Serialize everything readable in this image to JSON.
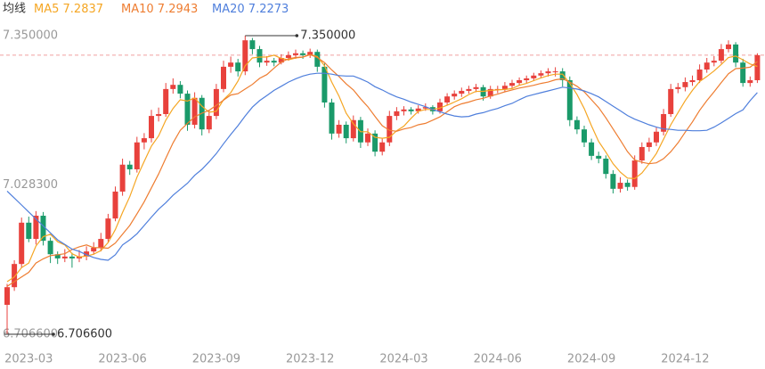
{
  "chart_data": {
    "type": "candlestick",
    "legend_title": "均线",
    "categories": [
      null,
      null,
      null,
      "2023-03",
      null,
      null,
      null,
      null,
      null,
      null,
      null,
      null,
      null,
      null,
      null,
      null,
      "2023-06",
      null,
      null,
      null,
      null,
      null,
      null,
      null,
      null,
      null,
      null,
      null,
      null,
      "2023-09",
      null,
      null,
      null,
      null,
      null,
      null,
      null,
      null,
      null,
      null,
      null,
      null,
      "2023-12",
      null,
      null,
      null,
      null,
      null,
      null,
      null,
      null,
      null,
      null,
      null,
      null,
      "2024-03",
      null,
      null,
      null,
      null,
      null,
      null,
      null,
      null,
      null,
      null,
      null,
      null,
      "2024-06",
      null,
      null,
      null,
      null,
      null,
      null,
      null,
      null,
      null,
      null,
      null,
      null,
      "2024-09",
      null,
      null,
      null,
      null,
      null,
      null,
      null,
      null,
      null,
      null,
      null,
      null,
      "2024-12",
      null,
      null,
      null,
      null,
      null,
      null,
      null,
      null,
      null,
      null
    ],
    "open": [
      6.77,
      6.808,
      6.858,
      6.947,
      6.912,
      6.962,
      6.908,
      6.879,
      6.87,
      6.874,
      6.87,
      6.874,
      6.885,
      6.893,
      6.912,
      6.956,
      7.014,
      7.072,
      7.062,
      7.12,
      7.129,
      7.177,
      7.181,
      7.235,
      7.244,
      7.225,
      7.158,
      7.216,
      7.148,
      7.177,
      7.235,
      7.283,
      7.292,
      7.273,
      7.34,
      7.321,
      7.292,
      7.296,
      7.292,
      7.302,
      7.308,
      7.312,
      7.308,
      7.315,
      7.283,
      7.206,
      7.139,
      7.158,
      7.129,
      7.168,
      7.12,
      7.139,
      7.1,
      7.12,
      7.177,
      7.187,
      7.191,
      7.187,
      7.193,
      7.196,
      7.187,
      7.206,
      7.219,
      7.225,
      7.231,
      7.235,
      7.239,
      7.219,
      7.235,
      7.235,
      7.242,
      7.248,
      7.254,
      7.258,
      7.264,
      7.269,
      7.273,
      7.273,
      7.254,
      7.168,
      7.148,
      7.12,
      7.091,
      7.085,
      7.052,
      7.02,
      7.033,
      7.024,
      7.081,
      7.11,
      7.12,
      7.143,
      7.181,
      7.235,
      7.239,
      7.25,
      7.254,
      7.277,
      7.292,
      7.296,
      7.321,
      7.331,
      7.292,
      7.248,
      7.254
    ],
    "high": [
      6.815,
      6.866,
      6.958,
      6.96,
      6.972,
      6.97,
      6.915,
      6.885,
      6.89,
      6.882,
      6.888,
      6.896,
      6.905,
      6.925,
      6.966,
      7.025,
      7.085,
      7.08,
      7.132,
      7.14,
      7.19,
      7.195,
      7.248,
      7.258,
      7.252,
      7.232,
      7.228,
      7.222,
      7.19,
      7.246,
      7.296,
      7.305,
      7.3,
      7.35,
      7.345,
      7.328,
      7.306,
      7.302,
      7.31,
      7.316,
      7.32,
      7.318,
      7.322,
      7.32,
      7.29,
      7.214,
      7.168,
      7.165,
      7.178,
      7.175,
      7.15,
      7.146,
      7.13,
      7.188,
      7.196,
      7.198,
      7.196,
      7.2,
      7.204,
      7.2,
      7.214,
      7.226,
      7.232,
      7.238,
      7.242,
      7.246,
      7.244,
      7.242,
      7.242,
      7.25,
      7.255,
      7.26,
      7.264,
      7.27,
      7.275,
      7.28,
      7.282,
      7.28,
      7.262,
      7.176,
      7.156,
      7.128,
      7.1,
      7.092,
      7.06,
      7.045,
      7.04,
      7.092,
      7.12,
      7.13,
      7.152,
      7.192,
      7.246,
      7.248,
      7.26,
      7.264,
      7.288,
      7.302,
      7.306,
      7.332,
      7.34,
      7.336,
      7.3,
      7.262,
      7.312
    ],
    "low": [
      6.7066,
      6.8,
      6.85,
      6.905,
      6.9,
      6.898,
      6.86,
      6.858,
      6.862,
      6.85,
      6.862,
      6.866,
      6.878,
      6.885,
      6.905,
      6.95,
      7.005,
      7.05,
      7.055,
      7.105,
      7.12,
      7.165,
      7.175,
      7.225,
      7.215,
      7.145,
      7.15,
      7.135,
      7.14,
      7.17,
      7.228,
      7.27,
      7.262,
      7.265,
      7.31,
      7.282,
      7.285,
      7.284,
      7.288,
      7.296,
      7.3,
      7.3,
      7.302,
      7.272,
      7.195,
      7.126,
      7.13,
      7.118,
      7.122,
      7.108,
      7.112,
      7.09,
      7.092,
      7.112,
      7.168,
      7.178,
      7.18,
      7.182,
      7.188,
      7.18,
      7.182,
      7.2,
      7.212,
      7.218,
      7.225,
      7.228,
      7.21,
      7.214,
      7.226,
      7.23,
      7.236,
      7.242,
      7.248,
      7.252,
      7.258,
      7.262,
      7.262,
      7.24,
      7.155,
      7.138,
      7.11,
      7.082,
      7.075,
      7.042,
      7.01,
      7.012,
      7.016,
      7.018,
      7.074,
      7.1,
      7.112,
      7.135,
      7.175,
      7.226,
      7.23,
      7.242,
      7.248,
      7.27,
      7.284,
      7.29,
      7.314,
      7.282,
      7.24,
      7.24,
      7.248
    ],
    "close": [
      6.808,
      6.858,
      6.947,
      6.912,
      6.962,
      6.908,
      6.879,
      6.87,
      6.874,
      6.87,
      6.874,
      6.885,
      6.893,
      6.912,
      6.956,
      7.014,
      7.072,
      7.062,
      7.12,
      7.129,
      7.177,
      7.181,
      7.235,
      7.244,
      7.225,
      7.158,
      7.216,
      7.148,
      7.177,
      7.235,
      7.283,
      7.292,
      7.273,
      7.34,
      7.321,
      7.292,
      7.296,
      7.292,
      7.302,
      7.308,
      7.312,
      7.308,
      7.315,
      7.283,
      7.206,
      7.139,
      7.158,
      7.129,
      7.168,
      7.12,
      7.139,
      7.1,
      7.12,
      7.177,
      7.187,
      7.191,
      7.187,
      7.193,
      7.196,
      7.187,
      7.206,
      7.219,
      7.225,
      7.231,
      7.235,
      7.239,
      7.219,
      7.235,
      7.235,
      7.242,
      7.248,
      7.254,
      7.258,
      7.264,
      7.269,
      7.273,
      7.273,
      7.254,
      7.168,
      7.148,
      7.12,
      7.091,
      7.085,
      7.052,
      7.02,
      7.033,
      7.024,
      7.081,
      7.11,
      7.12,
      7.143,
      7.181,
      7.235,
      7.239,
      7.25,
      7.254,
      7.277,
      7.292,
      7.296,
      7.321,
      7.331,
      7.292,
      7.248,
      7.254,
      7.308
    ],
    "up_color": "#e8413c",
    "down_color": "#1a9a6a",
    "series": [
      {
        "name": "MA5",
        "color": "#f5a623",
        "values": [
          6.82,
          6.83,
          6.85,
          6.86,
          6.897,
          6.917,
          6.922,
          6.906,
          6.899,
          6.88,
          6.873,
          6.875,
          6.879,
          6.887,
          6.904,
          6.932,
          6.969,
          7.003,
          7.045,
          7.079,
          7.112,
          7.134,
          7.168,
          7.193,
          7.212,
          7.209,
          7.216,
          7.198,
          7.185,
          7.187,
          7.212,
          7.227,
          7.252,
          7.285,
          7.302,
          7.304,
          7.304,
          7.308,
          7.301,
          7.298,
          7.302,
          7.304,
          7.309,
          7.305,
          7.285,
          7.25,
          7.22,
          7.183,
          7.16,
          7.143,
          7.143,
          7.131,
          7.129,
          7.131,
          7.145,
          7.155,
          7.172,
          7.187,
          7.191,
          7.191,
          7.194,
          7.2,
          7.207,
          7.214,
          7.223,
          7.23,
          7.23,
          7.232,
          7.233,
          7.234,
          7.236,
          7.243,
          7.247,
          7.253,
          7.259,
          7.264,
          7.267,
          7.267,
          7.247,
          7.223,
          7.193,
          7.156,
          7.122,
          7.099,
          7.074,
          7.056,
          7.043,
          7.042,
          7.054,
          7.074,
          7.096,
          7.127,
          7.158,
          7.184,
          7.21,
          7.232,
          7.251,
          7.262,
          7.274,
          7.288,
          7.303,
          7.306,
          7.298,
          7.289,
          7.2837
        ]
      },
      {
        "name": "MA10",
        "color": "#ee7d31",
        "values": [
          6.81,
          6.82,
          6.83,
          6.84,
          6.86,
          6.869,
          6.876,
          6.878,
          6.88,
          6.889,
          6.895,
          6.899,
          6.893,
          6.893,
          6.892,
          6.903,
          6.922,
          6.941,
          6.966,
          6.992,
          7.022,
          7.052,
          7.086,
          7.119,
          7.146,
          7.161,
          7.175,
          7.183,
          7.189,
          7.2,
          7.211,
          7.222,
          7.225,
          7.235,
          7.245,
          7.258,
          7.266,
          7.28,
          7.293,
          7.3,
          7.303,
          7.304,
          7.309,
          7.303,
          7.292,
          7.276,
          7.262,
          7.246,
          7.233,
          7.214,
          7.197,
          7.176,
          7.156,
          7.146,
          7.144,
          7.149,
          7.152,
          7.158,
          7.161,
          7.168,
          7.175,
          7.186,
          7.197,
          7.203,
          7.207,
          7.212,
          7.215,
          7.22,
          7.224,
          7.229,
          7.233,
          7.237,
          7.24,
          7.243,
          7.247,
          7.25,
          7.255,
          7.257,
          7.25,
          7.241,
          7.229,
          7.212,
          7.195,
          7.173,
          7.149,
          7.125,
          7.1,
          7.082,
          7.077,
          7.074,
          7.076,
          7.085,
          7.1,
          7.119,
          7.142,
          7.164,
          7.189,
          7.21,
          7.229,
          7.249,
          7.268,
          7.279,
          7.28,
          7.282,
          7.2943
        ]
      },
      {
        "name": "MA20",
        "color": "#4f7fdc",
        "values": [
          7.015,
          7.0,
          6.985,
          6.97,
          6.955,
          6.94,
          6.925,
          6.91,
          6.9,
          6.89,
          6.885,
          6.878,
          6.872,
          6.868,
          6.866,
          6.878,
          6.899,
          6.91,
          6.923,
          6.941,
          6.959,
          6.976,
          6.99,
          7.006,
          7.019,
          7.032,
          7.049,
          7.062,
          7.078,
          7.096,
          7.117,
          7.137,
          7.156,
          7.177,
          7.196,
          7.21,
          7.221,
          7.232,
          7.241,
          7.25,
          7.257,
          7.263,
          7.267,
          7.269,
          7.269,
          7.267,
          7.264,
          7.263,
          7.263,
          7.257,
          7.25,
          7.24,
          7.233,
          7.225,
          7.218,
          7.213,
          7.207,
          7.202,
          7.197,
          7.191,
          7.186,
          7.181,
          7.177,
          7.175,
          7.176,
          7.181,
          7.184,
          7.189,
          7.193,
          7.199,
          7.204,
          7.212,
          7.219,
          7.223,
          7.227,
          7.231,
          7.235,
          7.239,
          7.237,
          7.235,
          7.231,
          7.225,
          7.218,
          7.208,
          7.198,
          7.188,
          7.178,
          7.17,
          7.164,
          7.158,
          7.153,
          7.149,
          7.148,
          7.146,
          7.146,
          7.145,
          7.145,
          7.146,
          7.153,
          7.162,
          7.172,
          7.182,
          7.19,
          7.21,
          7.2273
        ]
      }
    ],
    "ylim": [
      6.7066,
      7.35
    ],
    "yticks": [
      {
        "value": 6.7066,
        "label": "6.706600"
      },
      {
        "value": 7.0283,
        "label": "7.028300"
      },
      {
        "value": 7.35,
        "label": "7.350000"
      }
    ],
    "max_label": "7.350000",
    "min_label": "6.706600"
  }
}
